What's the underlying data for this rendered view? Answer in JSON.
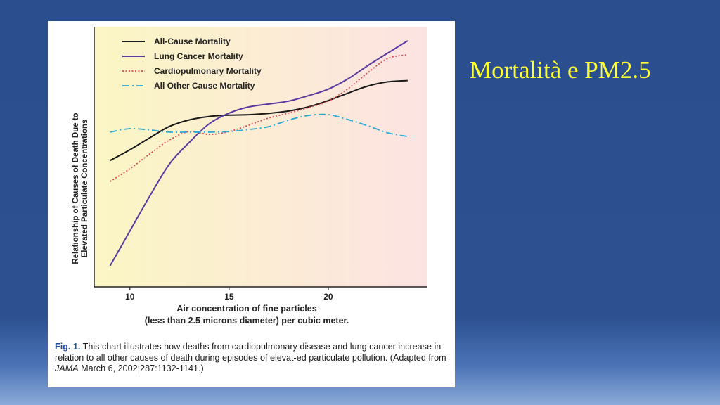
{
  "slide": {
    "title": "Mortalità e PM2.5"
  },
  "caption": {
    "label": "Fig. 1.",
    "text_before_journal": "This chart illustrates how deaths from cardiopulmonary disease and lung cancer increase in relation to all other causes of death during episodes of elevat-ed particulate pollution. (Adapted from",
    "journal": "JAMA",
    "text_after_journal": "March 6, 2002;287:1132-1141.)"
  },
  "chart_data": {
    "type": "line",
    "title": "",
    "xlabel_line1": "Air concentration of fine particles",
    "xlabel_line2": "(less than 2.5 microns diameter) per cubic meter.",
    "ylabel_line1": "Relationship of Causes of Death Due to",
    "ylabel_line2": "Elevated Particulate Concentrations",
    "x_ticks": [
      10,
      15,
      20
    ],
    "xlim": [
      8.2,
      25
    ],
    "ylim": [
      0,
      100
    ],
    "grid": false,
    "legend_position": "top-left",
    "background_colors": [
      "#fbf6c4",
      "#fce3e3"
    ],
    "series": [
      {
        "name": "All-Cause Mortality",
        "color": "#1a1a1a",
        "style": "solid",
        "x": [
          9,
          10,
          11,
          12,
          13,
          14,
          15,
          16,
          17,
          18,
          19,
          20,
          21,
          22,
          23,
          24
        ],
        "y": [
          48.6,
          52.7,
          57.3,
          61.7,
          64.2,
          65.5,
          66.0,
          66.2,
          66.7,
          67.6,
          69.2,
          71.6,
          74.5,
          77.2,
          78.8,
          79.3
        ]
      },
      {
        "name": "Lung Cancer Mortality",
        "color": "#5a3aa0",
        "style": "solid",
        "x": [
          9,
          10,
          11,
          12,
          13,
          14,
          15,
          16,
          17,
          18,
          19,
          20,
          21,
          22,
          23,
          24
        ],
        "y": [
          8.1,
          21.5,
          34.9,
          47.3,
          55.6,
          62.7,
          66.8,
          69.2,
          70.3,
          71.4,
          73.5,
          76.0,
          80.0,
          85.1,
          89.9,
          94.6
        ]
      },
      {
        "name": "Cardiopulmonary Mortality",
        "color": "#d94a55",
        "style": "dotted",
        "x": [
          9,
          10,
          11,
          12,
          13,
          14,
          15,
          16,
          17,
          18,
          19,
          20,
          21,
          22,
          23,
          24
        ],
        "y": [
          40.5,
          45.4,
          51.1,
          56.5,
          59.7,
          58.6,
          59.7,
          62.2,
          64.9,
          66.8,
          68.9,
          71.4,
          76.2,
          82.4,
          87.8,
          89.2
        ]
      },
      {
        "name": "All Other Cause Mortality",
        "color": "#27a9d3",
        "style": "dashdot",
        "x": [
          9,
          10,
          11,
          12,
          13,
          14,
          15,
          16,
          17,
          18,
          19,
          20,
          21,
          22,
          23,
          24
        ],
        "y": [
          59.5,
          60.8,
          60.3,
          59.5,
          59.5,
          59.5,
          59.7,
          60.5,
          61.6,
          64.1,
          65.9,
          66.2,
          64.3,
          61.9,
          59.2,
          57.8
        ]
      }
    ]
  }
}
